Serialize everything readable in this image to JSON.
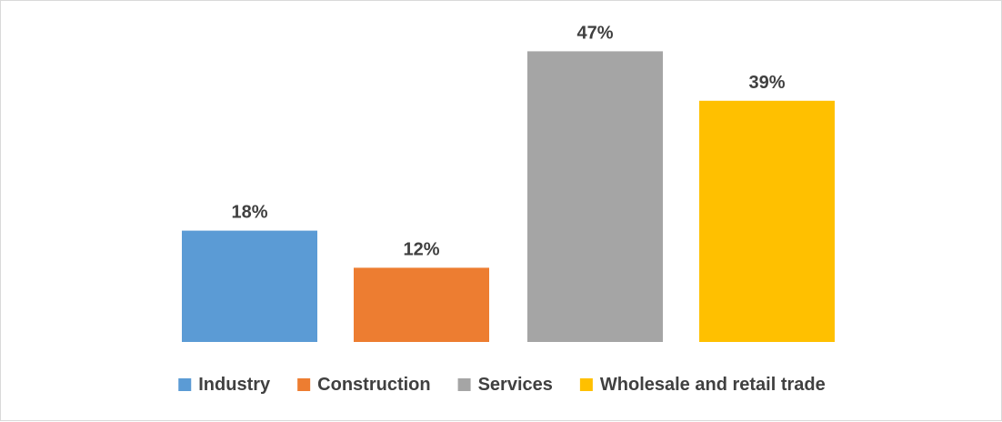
{
  "chart_data": {
    "type": "bar",
    "title": "",
    "xlabel": "",
    "ylabel": "",
    "categories": [
      "Industry",
      "Construction",
      "Services",
      "Wholesale and retail trade"
    ],
    "values": [
      18,
      12,
      47,
      39
    ],
    "data_labels": [
      "18%",
      "12%",
      "47%",
      "39%"
    ],
    "colors": [
      "#5b9bd5",
      "#ed7d31",
      "#a5a5a5",
      "#ffc000"
    ],
    "ylim": [
      0,
      50
    ],
    "grid": false,
    "legend_position": "bottom"
  }
}
